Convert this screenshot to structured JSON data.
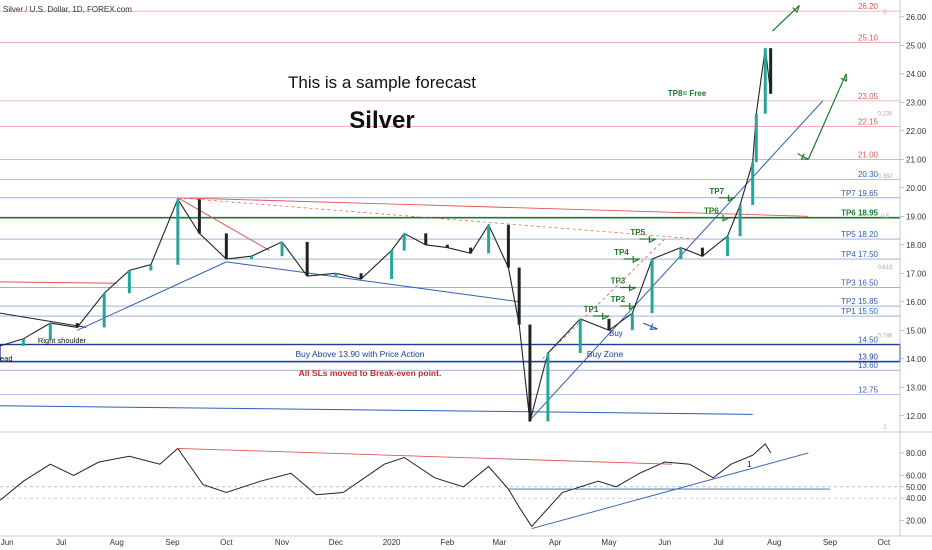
{
  "header": {
    "symbol_title": "Silver / U.S. Dollar, 1D, FOREX.com"
  },
  "annotations": {
    "forecast_title": "This is a sample forecast",
    "main_title": "Silver",
    "buy_above": "Buy Above 13.90 with Price Action",
    "buy_zone": "Buy Zone",
    "sl_note": "All SLs moved to Break-even point.",
    "right_shoulder": "Right shoulder",
    "head_fragment": "ead",
    "buy_label": "Buy",
    "tp8": "TP8= Free",
    "rsi_one": "1"
  },
  "colors": {
    "resistance": "#e05555",
    "support": "#2f5fb8",
    "target_green": "#1b7a2a",
    "buy_blue": "#1a3f9a",
    "sl_red": "#c62828",
    "candle_up": "#26a69a",
    "candle_down": "#222222"
  },
  "chart_data": [
    {
      "type": "line",
      "title": "Silver / U.S. Dollar, 1D, FOREX.com",
      "y_axis_side": "right",
      "ylim": [
        11.5,
        26.45
      ],
      "yticks": [
        "12.00",
        "13.00",
        "14.00",
        "15.00",
        "16.00",
        "17.00",
        "18.00",
        "19.00",
        "20.00",
        "21.00",
        "22.00",
        "23.00",
        "24.00",
        "25.00",
        "26.00"
      ],
      "xticks": [
        "Jun",
        "Jul",
        "Aug",
        "Sep",
        "Oct",
        "Nov",
        "Dec",
        "2020",
        "Feb",
        "Mar",
        "Apr",
        "May",
        "Jun",
        "Jul",
        "Aug",
        "Sep",
        "Oct"
      ],
      "series": [
        {
          "values": [
            {
              "x": "2019-05-28",
              "y": 14.45
            },
            {
              "x": "2019-06-10",
              "y": 14.7
            },
            {
              "x": "2019-06-25",
              "y": 15.25
            },
            {
              "x": "2019-07-10",
              "y": 15.1
            },
            {
              "x": "2019-07-25",
              "y": 16.3
            },
            {
              "x": "2019-08-08",
              "y": 17.1
            },
            {
              "x": "2019-08-20",
              "y": 17.3
            },
            {
              "x": "2019-09-04",
              "y": 19.6
            },
            {
              "x": "2019-09-16",
              "y": 18.4
            },
            {
              "x": "2019-10-01",
              "y": 17.5
            },
            {
              "x": "2019-10-15",
              "y": 17.6
            },
            {
              "x": "2019-11-01",
              "y": 18.1
            },
            {
              "x": "2019-11-15",
              "y": 16.9
            },
            {
              "x": "2019-12-01",
              "y": 17.0
            },
            {
              "x": "2019-12-15",
              "y": 16.8
            },
            {
              "x": "2020-01-01",
              "y": 17.8
            },
            {
              "x": "2020-01-08",
              "y": 18.4
            },
            {
              "x": "2020-01-20",
              "y": 18.0
            },
            {
              "x": "2020-02-01",
              "y": 17.9
            },
            {
              "x": "2020-02-14",
              "y": 17.7
            },
            {
              "x": "2020-02-24",
              "y": 18.7
            },
            {
              "x": "2020-03-06",
              "y": 17.2
            },
            {
              "x": "2020-03-12",
              "y": 15.2
            },
            {
              "x": "2020-03-18",
              "y": 11.8
            },
            {
              "x": "2020-03-28",
              "y": 14.2
            },
            {
              "x": "2020-04-15",
              "y": 15.4
            },
            {
              "x": "2020-05-01",
              "y": 15.0
            },
            {
              "x": "2020-05-14",
              "y": 15.6
            },
            {
              "x": "2020-05-25",
              "y": 17.5
            },
            {
              "x": "2020-06-10",
              "y": 17.9
            },
            {
              "x": "2020-06-22",
              "y": 17.6
            },
            {
              "x": "2020-07-06",
              "y": 18.3
            },
            {
              "x": "2020-07-13",
              "y": 19.4
            },
            {
              "x": "2020-07-20",
              "y": 20.9
            },
            {
              "x": "2020-07-22",
              "y": 22.6
            },
            {
              "x": "2020-07-27",
              "y": 24.9
            },
            {
              "x": "2020-07-30",
              "y": 23.3
            }
          ]
        }
      ],
      "levels": [
        {
          "value": 26.2,
          "label": "26.20",
          "kind": "resistance"
        },
        {
          "value": 25.1,
          "label": "25.10",
          "kind": "resistance"
        },
        {
          "value": 23.05,
          "label": "23.05",
          "kind": "resistance"
        },
        {
          "value": 22.15,
          "label": "22.15",
          "kind": "resistance"
        },
        {
          "value": 21.0,
          "label": "21.00",
          "kind": "resistance"
        },
        {
          "value": 20.3,
          "label": "20.30",
          "kind": "support"
        },
        {
          "value": 19.65,
          "label": "TP7 19.65",
          "kind": "support"
        },
        {
          "value": 18.95,
          "label": "TP6 18.95",
          "kind": "green"
        },
        {
          "value": 18.2,
          "label": "TP5 18.20",
          "kind": "support"
        },
        {
          "value": 17.5,
          "label": "TP4 17.50",
          "kind": "support"
        },
        {
          "value": 16.5,
          "label": "TP3 16.50",
          "kind": "support"
        },
        {
          "value": 15.85,
          "label": "TP2 15.85",
          "kind": "support"
        },
        {
          "value": 15.5,
          "label": "TP1 15.50",
          "kind": "support"
        },
        {
          "value": 14.5,
          "label": "14.50",
          "kind": "support"
        },
        {
          "value": 13.9,
          "label": "13.90",
          "kind": "buy"
        },
        {
          "value": 13.6,
          "label": "13.60",
          "kind": "support"
        },
        {
          "value": 12.75,
          "label": "12.75",
          "kind": "support"
        }
      ],
      "fib_labels": [
        {
          "value": 26.2,
          "label": "0"
        },
        {
          "value": 22.65,
          "label": "0.236"
        },
        {
          "value": 20.45,
          "label": "0.382"
        },
        {
          "value": 19.05,
          "label": "0.5"
        },
        {
          "value": 17.25,
          "label": "0.618"
        },
        {
          "value": 14.85,
          "label": "0.786"
        },
        {
          "value": 11.65,
          "label": "1"
        }
      ],
      "take_profits": [
        {
          "label": "TP1",
          "date": "2020-05-01",
          "y": 15.5
        },
        {
          "label": "TP2",
          "date": "2020-05-16",
          "y": 15.85
        },
        {
          "label": "TP3",
          "date": "2020-05-16",
          "y": 16.5
        },
        {
          "label": "TP4",
          "date": "2020-05-18",
          "y": 17.5
        },
        {
          "label": "TP5",
          "date": "2020-05-27",
          "y": 18.2
        },
        {
          "label": "TP6",
          "date": "2020-07-07",
          "y": 18.95
        },
        {
          "label": "TP7",
          "date": "2020-07-10",
          "y": 19.65
        }
      ]
    },
    {
      "type": "line",
      "title": "RSI",
      "ylim": [
        10,
        95
      ],
      "yticks": [
        "20.00",
        "40.00",
        "50.00",
        "60.00",
        "80.00"
      ],
      "reference_levels": [
        50,
        40
      ],
      "series": [
        {
          "values": [
            {
              "x": "2019-05-28",
              "y": 38
            },
            {
              "x": "2019-06-10",
              "y": 55
            },
            {
              "x": "2019-06-25",
              "y": 70
            },
            {
              "x": "2019-07-08",
              "y": 60
            },
            {
              "x": "2019-07-22",
              "y": 72
            },
            {
              "x": "2019-08-08",
              "y": 77
            },
            {
              "x": "2019-08-25",
              "y": 70
            },
            {
              "x": "2019-09-04",
              "y": 84
            },
            {
              "x": "2019-09-18",
              "y": 52
            },
            {
              "x": "2019-10-01",
              "y": 45
            },
            {
              "x": "2019-10-20",
              "y": 55
            },
            {
              "x": "2019-11-06",
              "y": 62
            },
            {
              "x": "2019-11-20",
              "y": 43
            },
            {
              "x": "2019-12-05",
              "y": 45
            },
            {
              "x": "2019-12-28",
              "y": 70
            },
            {
              "x": "2020-01-08",
              "y": 76
            },
            {
              "x": "2020-01-25",
              "y": 58
            },
            {
              "x": "2020-02-10",
              "y": 50
            },
            {
              "x": "2020-02-24",
              "y": 68
            },
            {
              "x": "2020-03-06",
              "y": 48
            },
            {
              "x": "2020-03-12",
              "y": 32
            },
            {
              "x": "2020-03-19",
              "y": 15
            },
            {
              "x": "2020-04-05",
              "y": 45
            },
            {
              "x": "2020-04-25",
              "y": 55
            },
            {
              "x": "2020-05-05",
              "y": 50
            },
            {
              "x": "2020-05-18",
              "y": 62
            },
            {
              "x": "2020-06-01",
              "y": 72
            },
            {
              "x": "2020-06-15",
              "y": 70
            },
            {
              "x": "2020-06-28",
              "y": 58
            },
            {
              "x": "2020-07-08",
              "y": 70
            },
            {
              "x": "2020-07-20",
              "y": 78
            },
            {
              "x": "2020-07-27",
              "y": 88
            },
            {
              "x": "2020-07-30",
              "y": 80
            }
          ]
        }
      ]
    }
  ]
}
